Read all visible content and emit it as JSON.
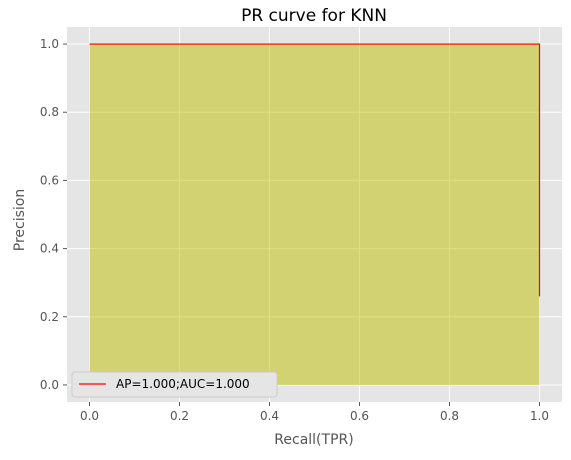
{
  "chart_data": {
    "type": "line",
    "title": "PR curve for KNN",
    "xlabel": "Recall(TPR)",
    "ylabel": "Precision",
    "xlim": [
      -0.05,
      1.05
    ],
    "ylim": [
      -0.05,
      1.05
    ],
    "xticks": [
      "0.0",
      "0.2",
      "0.4",
      "0.6",
      "0.8",
      "1.0"
    ],
    "yticks": [
      "0.0",
      "0.2",
      "0.4",
      "0.6",
      "0.8",
      "1.0"
    ],
    "grid": true,
    "legend_position": "lower-left",
    "series": [
      {
        "name": "AP=1.000;AUC=1.000",
        "color": "#ff0000",
        "fill_color": "#bfbf00",
        "x": [
          0.0,
          1.0,
          1.0
        ],
        "y": [
          1.0,
          1.0,
          0.26
        ]
      }
    ]
  }
}
